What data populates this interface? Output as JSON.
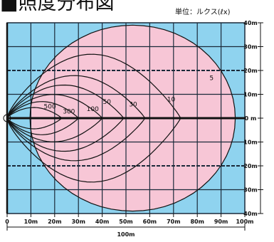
{
  "title": "■照度分布図",
  "unit_label": "単位：ルクス(ℓx)",
  "colors": {
    "background": "#8fd3ef",
    "zone": "#f7c6d6",
    "grid": "#1b2a3a",
    "contour": "#111111"
  },
  "x_ticks": [
    "0",
    "10m",
    "20m",
    "30m",
    "40m",
    "50m",
    "60m",
    "70m",
    "80m",
    "90m",
    "100m"
  ],
  "y_ticks": [
    "40m",
    "30m",
    "20m",
    "10m",
    "0 m",
    "10m",
    "20m",
    "30m",
    "40m"
  ],
  "dimension_label": "100m",
  "contours": [
    {
      "label": "5",
      "reach_m": 96,
      "halfwidth_m": 39
    },
    {
      "label": "10",
      "reach_m": 73,
      "halfwidth_m": 27
    },
    {
      "label": "30",
      "reach_m": 58,
      "halfwidth_m": 18
    },
    {
      "label": "50",
      "reach_m": 49,
      "halfwidth_m": 14
    },
    {
      "label": "100",
      "reach_m": 40,
      "halfwidth_m": 10
    },
    {
      "label": "300",
      "reach_m": 30,
      "halfwidth_m": 7
    },
    {
      "label": "500",
      "reach_m": 23,
      "halfwidth_m": 4.5
    }
  ]
}
